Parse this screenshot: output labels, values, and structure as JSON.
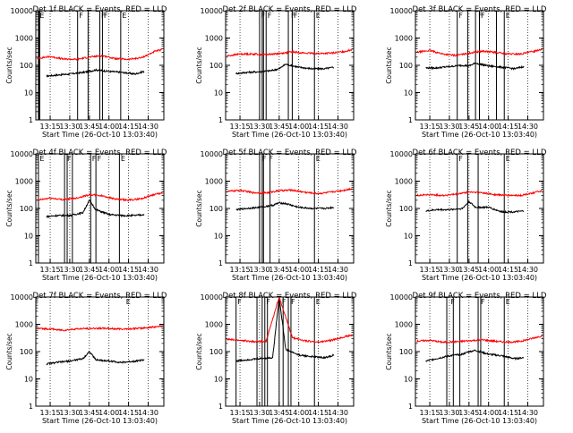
{
  "colors": {
    "events": "#000000",
    "lld": "#ff0000",
    "background": "#ffffff"
  },
  "chart_data": [
    {
      "type": "line",
      "title": "Det 1f BLACK = Events, RED = LLD",
      "xlabel": "Start Time (26-Oct-10 13:03:40)",
      "ylabel": "Counts/sec",
      "yscale": "log",
      "ylim": [
        1,
        10000
      ],
      "xlim": [
        "13:04",
        "14:42"
      ],
      "grid": false,
      "x_ticks": [
        "13:15",
        "13:30",
        "13:45",
        "14:00",
        "14:15",
        "14:30"
      ],
      "y_ticks": [
        "1",
        "10",
        "100",
        "1000",
        "10000"
      ],
      "marker_lines": [
        "13:06",
        "13:06.5",
        "13:07",
        "13:36",
        "13:44",
        "13:53",
        "13:55",
        "14:09"
      ],
      "flag_labels": [
        {
          "x": "13:06",
          "text": "E"
        },
        {
          "x": "13:36",
          "text": "F"
        },
        {
          "x": "13:53",
          "text": "F"
        },
        {
          "x": "13:55",
          "text": "F"
        },
        {
          "x": "14:09",
          "text": "E"
        }
      ],
      "series": [
        {
          "name": "Events",
          "x": [
            "13:12",
            "13:20",
            "13:30",
            "13:40",
            "13:45",
            "13:50",
            "14:00",
            "14:10",
            "14:20",
            "14:27"
          ],
          "values": [
            40,
            44,
            48,
            55,
            60,
            68,
            60,
            55,
            48,
            60
          ]
        },
        {
          "name": "LLD",
          "x": [
            "13:05",
            "13:15",
            "13:25",
            "13:35",
            "13:45",
            "13:55",
            "14:05",
            "14:15",
            "14:25",
            "14:35",
            "14:41"
          ],
          "values": [
            180,
            210,
            170,
            165,
            200,
            225,
            175,
            165,
            190,
            320,
            380
          ]
        }
      ]
    },
    {
      "type": "line",
      "title": "Det 2f BLACK = Events, RED = LLD",
      "xlabel": "Start Time (26-Oct-10 13:03:40)",
      "ylabel": "Counts/sec",
      "yscale": "log",
      "ylim": [
        1,
        10000
      ],
      "xlim": [
        "13:04",
        "14:42"
      ],
      "grid": false,
      "x_ticks": [
        "13:15",
        "13:30",
        "13:45",
        "14:00",
        "14:15",
        "14:30"
      ],
      "y_ticks": [
        "1",
        "10",
        "100",
        "1000",
        "10000"
      ],
      "marker_lines": [
        "13:30",
        "13:32",
        "13:33",
        "13:35",
        "13:52",
        "13:55",
        "14:12"
      ],
      "flag_labels": [
        {
          "x": "13:30",
          "text": "F"
        },
        {
          "x": "13:35",
          "text": "F"
        },
        {
          "x": "13:53",
          "text": "F"
        },
        {
          "x": "13:55",
          "text": "F"
        },
        {
          "x": "14:12",
          "text": "E"
        }
      ],
      "series": [
        {
          "name": "Events",
          "x": [
            "13:12",
            "13:20",
            "13:30",
            "13:40",
            "13:45",
            "13:50",
            "14:00",
            "14:10",
            "14:20",
            "14:27"
          ],
          "values": [
            50,
            55,
            58,
            65,
            75,
            110,
            85,
            75,
            75,
            85
          ]
        },
        {
          "name": "LLD",
          "x": [
            "13:05",
            "13:15",
            "13:25",
            "13:35",
            "13:45",
            "13:55",
            "14:05",
            "14:15",
            "14:25",
            "14:35",
            "14:41"
          ],
          "values": [
            220,
            260,
            260,
            250,
            270,
            310,
            280,
            270,
            280,
            320,
            380
          ]
        }
      ]
    },
    {
      "type": "line",
      "title": "Det 3f BLACK = Events, RED = LLD",
      "xlabel": "Start Time (26-Oct-10 13:03:40)",
      "ylabel": "Counts/sec",
      "yscale": "log",
      "ylim": [
        1,
        10000
      ],
      "xlim": [
        "13:04",
        "14:42"
      ],
      "grid": false,
      "x_ticks": [
        "13:15",
        "13:30",
        "13:45",
        "14:00",
        "14:15",
        "14:30"
      ],
      "y_ticks": [
        "1",
        "10",
        "100",
        "1000",
        "10000"
      ],
      "marker_lines": [
        "13:36",
        "13:44",
        "13:50",
        "13:53",
        "14:06",
        "14:12"
      ],
      "flag_labels": [
        {
          "x": "13:36",
          "text": "F"
        },
        {
          "x": "13:51",
          "text": "F"
        },
        {
          "x": "13:53",
          "text": "F"
        },
        {
          "x": "14:12",
          "text": "E"
        }
      ],
      "series": [
        {
          "name": "Events",
          "x": [
            "13:12",
            "13:20",
            "13:30",
            "13:40",
            "13:45",
            "13:50",
            "14:00",
            "14:10",
            "14:20",
            "14:27"
          ],
          "values": [
            80,
            80,
            90,
            100,
            95,
            120,
            95,
            85,
            75,
            90
          ]
        },
        {
          "name": "LLD",
          "x": [
            "13:05",
            "13:15",
            "13:25",
            "13:35",
            "13:45",
            "13:55",
            "14:05",
            "14:15",
            "14:25",
            "14:35",
            "14:41"
          ],
          "values": [
            300,
            350,
            260,
            230,
            280,
            330,
            300,
            260,
            260,
            330,
            400
          ]
        }
      ]
    },
    {
      "type": "line",
      "title": "Det 4f BLACK = Events, RED = LLD",
      "xlabel": "Start Time (26-Oct-10 13:03:40)",
      "ylabel": "Counts/sec",
      "yscale": "log",
      "ylim": [
        1,
        10000
      ],
      "xlim": [
        "13:04",
        "14:42"
      ],
      "grid": false,
      "x_ticks": [
        "13:15",
        "13:30",
        "13:45",
        "14:00",
        "14:15",
        "14:30"
      ],
      "y_ticks": [
        "1",
        "10",
        "100",
        "1000",
        "10000"
      ],
      "marker_lines": [
        "13:06",
        "13:26",
        "13:28",
        "13:32",
        "13:46",
        "13:50",
        "14:08"
      ],
      "flag_labels": [
        {
          "x": "13:06",
          "text": "E"
        },
        {
          "x": "13:27",
          "text": "F"
        },
        {
          "x": "13:46",
          "text": "F"
        },
        {
          "x": "13:50",
          "text": "F"
        },
        {
          "x": "14:08",
          "text": "E"
        }
      ],
      "series": [
        {
          "name": "Events",
          "x": [
            "13:12",
            "13:20",
            "13:30",
            "13:40",
            "13:45",
            "13:50",
            "14:00",
            "14:10",
            "14:20",
            "14:27"
          ],
          "values": [
            50,
            55,
            55,
            70,
            200,
            90,
            60,
            55,
            55,
            60
          ]
        },
        {
          "name": "LLD",
          "x": [
            "13:05",
            "13:15",
            "13:25",
            "13:35",
            "13:45",
            "13:55",
            "14:05",
            "14:15",
            "14:25",
            "14:35",
            "14:41"
          ],
          "values": [
            200,
            240,
            210,
            240,
            320,
            290,
            220,
            200,
            230,
            330,
            360
          ]
        }
      ]
    },
    {
      "type": "line",
      "title": "Det 5f BLACK = Events, RED = LLD",
      "xlabel": "Start Time (26-Oct-10 13:03:40)",
      "ylabel": "Counts/sec",
      "yscale": "log",
      "ylim": [
        1,
        10000
      ],
      "xlim": [
        "13:04",
        "14:42"
      ],
      "grid": false,
      "x_ticks": [
        "13:15",
        "13:30",
        "13:45",
        "14:00",
        "14:15",
        "14:30"
      ],
      "y_ticks": [
        "1",
        "10",
        "100",
        "1000",
        "10000"
      ],
      "marker_lines": [
        "13:30",
        "13:32",
        "13:33",
        "13:38",
        "14:12"
      ],
      "flag_labels": [
        {
          "x": "13:31",
          "text": "F"
        },
        {
          "x": "13:36",
          "text": "F"
        },
        {
          "x": "14:12",
          "text": "E"
        }
      ],
      "series": [
        {
          "name": "Events",
          "x": [
            "13:12",
            "13:20",
            "13:30",
            "13:40",
            "13:45",
            "13:50",
            "14:00",
            "14:10",
            "14:20",
            "14:27"
          ],
          "values": [
            90,
            100,
            110,
            130,
            160,
            150,
            110,
            100,
            100,
            110
          ]
        },
        {
          "name": "LLD",
          "x": [
            "13:05",
            "13:15",
            "13:25",
            "13:35",
            "13:45",
            "13:55",
            "14:05",
            "14:15",
            "14:25",
            "14:35",
            "14:41"
          ],
          "values": [
            420,
            460,
            380,
            370,
            450,
            470,
            390,
            350,
            400,
            470,
            540
          ]
        }
      ]
    },
    {
      "type": "line",
      "title": "Det 6f BLACK = Events, RED = LLD",
      "xlabel": "Start Time (26-Oct-10 13:03:40)",
      "ylabel": "Counts/sec",
      "yscale": "log",
      "ylim": [
        1,
        10000
      ],
      "xlim": [
        "13:04",
        "14:42"
      ],
      "grid": false,
      "x_ticks": [
        "13:15",
        "13:30",
        "13:45",
        "14:00",
        "14:15",
        "14:30"
      ],
      "y_ticks": [
        "1",
        "10",
        "100",
        "1000",
        "10000"
      ],
      "marker_lines": [
        "13:36",
        "13:44",
        "13:52",
        "14:12"
      ],
      "flag_labels": [
        {
          "x": "13:36",
          "text": "F"
        },
        {
          "x": "14:12",
          "text": "E"
        }
      ],
      "series": [
        {
          "name": "Events",
          "x": [
            "13:12",
            "13:20",
            "13:30",
            "13:40",
            "13:45",
            "13:50",
            "14:00",
            "14:10",
            "14:20",
            "14:27"
          ],
          "values": [
            80,
            90,
            90,
            100,
            180,
            110,
            110,
            75,
            75,
            80
          ]
        },
        {
          "name": "LLD",
          "x": [
            "13:05",
            "13:15",
            "13:25",
            "13:35",
            "13:45",
            "13:55",
            "14:05",
            "14:15",
            "14:25",
            "14:35",
            "14:41"
          ],
          "values": [
            300,
            320,
            300,
            330,
            400,
            380,
            320,
            300,
            300,
            380,
            450
          ]
        }
      ]
    },
    {
      "type": "line",
      "title": "Det 7f BLACK = Events, RED = LLD",
      "xlabel": "Start Time (26-Oct-10 13:03:40)",
      "ylabel": "Counts/sec",
      "yscale": "log",
      "ylim": [
        1,
        10000
      ],
      "xlim": [
        "13:04",
        "14:42"
      ],
      "grid": false,
      "x_ticks": [
        "13:15",
        "13:30",
        "13:45",
        "14:00",
        "14:15",
        "14:30"
      ],
      "y_ticks": [
        "1",
        "10",
        "100",
        "1000",
        "10000"
      ],
      "marker_lines": [],
      "flag_labels": [
        {
          "x": "14:12",
          "text": "E"
        }
      ],
      "series": [
        {
          "name": "Events",
          "x": [
            "13:12",
            "13:20",
            "13:30",
            "13:40",
            "13:45",
            "13:50",
            "14:00",
            "14:10",
            "14:20",
            "14:27"
          ],
          "values": [
            35,
            40,
            45,
            55,
            100,
            50,
            45,
            40,
            45,
            50
          ]
        },
        {
          "name": "LLD",
          "x": [
            "13:05",
            "13:15",
            "13:25",
            "13:35",
            "13:45",
            "13:55",
            "14:05",
            "14:15",
            "14:25",
            "14:35",
            "14:41"
          ],
          "values": [
            700,
            680,
            600,
            680,
            700,
            720,
            680,
            680,
            720,
            800,
            880
          ]
        }
      ]
    },
    {
      "type": "line",
      "title": "Det 8f BLACK = Events, RED = LLD",
      "xlabel": "Start Time (26-Oct-10 13:03:40)",
      "ylabel": "Counts/sec",
      "yscale": "log",
      "ylim": [
        1,
        10000
      ],
      "xlim": [
        "13:04",
        "14:42"
      ],
      "grid": false,
      "x_ticks": [
        "13:15",
        "13:30",
        "13:45",
        "14:00",
        "14:15",
        "14:30"
      ],
      "y_ticks": [
        "1",
        "10",
        "100",
        "1000",
        "10000"
      ],
      "marker_lines": [
        "13:12",
        "13:28",
        "13:32",
        "13:34",
        "13:36",
        "13:45",
        "13:48",
        "13:52",
        "13:54",
        "14:12"
      ],
      "flag_labels": [
        {
          "x": "13:12",
          "text": "F"
        },
        {
          "x": "13:34",
          "text": "F"
        },
        {
          "x": "13:46",
          "text": "F"
        },
        {
          "x": "13:53",
          "text": "F"
        },
        {
          "x": "14:12",
          "text": "E"
        }
      ],
      "series": [
        {
          "name": "Events",
          "x": [
            "13:12",
            "13:20",
            "13:30",
            "13:40",
            "13:45",
            "13:50",
            "14:00",
            "14:10",
            "14:20",
            "14:27"
          ],
          "values": [
            45,
            50,
            55,
            60,
            10000,
            120,
            75,
            65,
            60,
            75
          ]
        },
        {
          "name": "LLD",
          "x": [
            "13:05",
            "13:15",
            "13:25",
            "13:35",
            "13:45",
            "13:55",
            "14:05",
            "14:15",
            "14:25",
            "14:35",
            "14:41"
          ],
          "values": [
            280,
            260,
            230,
            240,
            10000,
            330,
            250,
            220,
            260,
            350,
            400
          ]
        }
      ]
    },
    {
      "type": "line",
      "title": "Det 9f BLACK = Events, RED = LLD",
      "xlabel": "Start Time (26-Oct-10 13:03:40)",
      "ylabel": "Counts/sec",
      "yscale": "log",
      "ylim": [
        1,
        10000
      ],
      "xlim": [
        "13:04",
        "14:42"
      ],
      "grid": false,
      "x_ticks": [
        "13:15",
        "13:30",
        "13:45",
        "14:00",
        "14:15",
        "14:30"
      ],
      "y_ticks": [
        "1",
        "10",
        "100",
        "1000",
        "10000"
      ],
      "marker_lines": [
        "13:28",
        "13:33",
        "13:38",
        "13:52",
        "13:54",
        "14:12"
      ],
      "flag_labels": [
        {
          "x": "13:30",
          "text": "F"
        },
        {
          "x": "13:53",
          "text": "F"
        },
        {
          "x": "14:12",
          "text": "E"
        }
      ],
      "series": [
        {
          "name": "Events",
          "x": [
            "13:12",
            "13:20",
            "13:30",
            "13:40",
            "13:45",
            "13:50",
            "14:00",
            "14:10",
            "14:20",
            "14:27"
          ],
          "values": [
            45,
            55,
            70,
            80,
            100,
            110,
            80,
            70,
            55,
            60
          ]
        },
        {
          "name": "LLD",
          "x": [
            "13:05",
            "13:15",
            "13:25",
            "13:35",
            "13:45",
            "13:55",
            "14:05",
            "14:15",
            "14:25",
            "14:35",
            "14:41"
          ],
          "values": [
            240,
            260,
            220,
            230,
            250,
            270,
            240,
            220,
            240,
            320,
            380
          ]
        }
      ]
    }
  ]
}
